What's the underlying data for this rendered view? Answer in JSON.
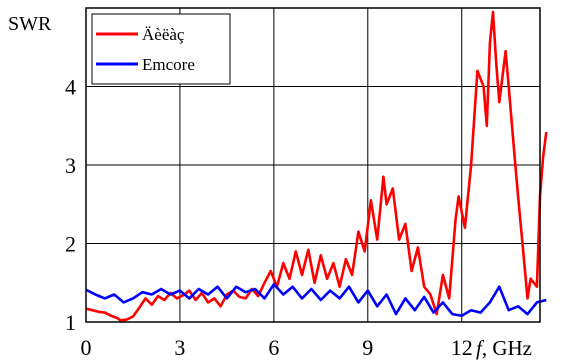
{
  "chart_data": {
    "type": "line",
    "title": "",
    "ylabel": "SWR",
    "xlabel_italic": "f",
    "xlabel_unit": ", GHz",
    "xlim": [
      0,
      14.5
    ],
    "ylim": [
      1,
      5
    ],
    "x_ticks": [
      0,
      3,
      6,
      9,
      12
    ],
    "x_tick_labels": [
      "0",
      "3",
      "6",
      "9",
      "12"
    ],
    "y_ticks": [
      1,
      2,
      3,
      4
    ],
    "y_tick_labels": [
      "1",
      "2",
      "3",
      "4"
    ],
    "grid": true,
    "legend_position": "top-left",
    "series": [
      {
        "name": "Äèëàç",
        "color": "#ff0000",
        "points": [
          [
            0,
            1.17
          ],
          [
            0.2,
            1.15
          ],
          [
            0.4,
            1.13
          ],
          [
            0.6,
            1.12
          ],
          [
            0.8,
            1.08
          ],
          [
            1.0,
            1.05
          ],
          [
            1.1,
            1.02
          ],
          [
            1.3,
            1.03
          ],
          [
            1.5,
            1.07
          ],
          [
            1.7,
            1.18
          ],
          [
            1.9,
            1.3
          ],
          [
            2.1,
            1.22
          ],
          [
            2.3,
            1.33
          ],
          [
            2.5,
            1.28
          ],
          [
            2.7,
            1.37
          ],
          [
            2.9,
            1.3
          ],
          [
            3.1,
            1.34
          ],
          [
            3.3,
            1.4
          ],
          [
            3.5,
            1.28
          ],
          [
            3.7,
            1.37
          ],
          [
            3.9,
            1.25
          ],
          [
            4.1,
            1.3
          ],
          [
            4.3,
            1.2
          ],
          [
            4.5,
            1.35
          ],
          [
            4.7,
            1.4
          ],
          [
            4.9,
            1.32
          ],
          [
            5.1,
            1.3
          ],
          [
            5.3,
            1.42
          ],
          [
            5.5,
            1.33
          ],
          [
            5.7,
            1.5
          ],
          [
            5.9,
            1.65
          ],
          [
            6.1,
            1.45
          ],
          [
            6.3,
            1.75
          ],
          [
            6.5,
            1.55
          ],
          [
            6.7,
            1.9
          ],
          [
            6.9,
            1.6
          ],
          [
            7.1,
            1.92
          ],
          [
            7.3,
            1.5
          ],
          [
            7.5,
            1.85
          ],
          [
            7.7,
            1.55
          ],
          [
            7.9,
            1.75
          ],
          [
            8.1,
            1.45
          ],
          [
            8.3,
            1.8
          ],
          [
            8.5,
            1.6
          ],
          [
            8.7,
            2.15
          ],
          [
            8.9,
            1.9
          ],
          [
            9.1,
            2.55
          ],
          [
            9.3,
            2.05
          ],
          [
            9.5,
            2.85
          ],
          [
            9.6,
            2.5
          ],
          [
            9.8,
            2.7
          ],
          [
            10.0,
            2.05
          ],
          [
            10.2,
            2.25
          ],
          [
            10.4,
            1.65
          ],
          [
            10.6,
            1.95
          ],
          [
            10.8,
            1.45
          ],
          [
            11.0,
            1.35
          ],
          [
            11.2,
            1.1
          ],
          [
            11.4,
            1.6
          ],
          [
            11.6,
            1.3
          ],
          [
            11.8,
            2.3
          ],
          [
            11.9,
            2.6
          ],
          [
            12.1,
            2.2
          ],
          [
            12.3,
            3.0
          ],
          [
            12.5,
            4.2
          ],
          [
            12.7,
            4.0
          ],
          [
            12.8,
            3.5
          ],
          [
            12.9,
            4.55
          ],
          [
            13.0,
            4.95
          ],
          [
            13.1,
            4.3
          ],
          [
            13.2,
            3.8
          ],
          [
            13.4,
            4.45
          ],
          [
            13.5,
            4.0
          ],
          [
            13.7,
            3.05
          ],
          [
            13.8,
            2.6
          ],
          [
            14.0,
            1.75
          ],
          [
            14.1,
            1.3
          ],
          [
            14.2,
            1.55
          ],
          [
            14.4,
            1.45
          ],
          [
            14.5,
            2.6
          ],
          [
            14.6,
            3.1
          ],
          [
            14.7,
            3.42
          ]
        ]
      },
      {
        "name": "Emcore",
        "color": "#0000ff",
        "points": [
          [
            0,
            1.41
          ],
          [
            0.3,
            1.35
          ],
          [
            0.6,
            1.3
          ],
          [
            0.9,
            1.35
          ],
          [
            1.2,
            1.25
          ],
          [
            1.5,
            1.3
          ],
          [
            1.8,
            1.38
          ],
          [
            2.1,
            1.35
          ],
          [
            2.4,
            1.42
          ],
          [
            2.7,
            1.35
          ],
          [
            3.0,
            1.4
          ],
          [
            3.3,
            1.3
          ],
          [
            3.6,
            1.42
          ],
          [
            3.9,
            1.35
          ],
          [
            4.2,
            1.45
          ],
          [
            4.5,
            1.3
          ],
          [
            4.8,
            1.45
          ],
          [
            5.1,
            1.38
          ],
          [
            5.4,
            1.42
          ],
          [
            5.7,
            1.3
          ],
          [
            6.0,
            1.48
          ],
          [
            6.3,
            1.35
          ],
          [
            6.6,
            1.45
          ],
          [
            6.9,
            1.3
          ],
          [
            7.2,
            1.42
          ],
          [
            7.5,
            1.28
          ],
          [
            7.8,
            1.4
          ],
          [
            8.1,
            1.3
          ],
          [
            8.4,
            1.45
          ],
          [
            8.7,
            1.25
          ],
          [
            9.0,
            1.4
          ],
          [
            9.3,
            1.2
          ],
          [
            9.6,
            1.35
          ],
          [
            9.9,
            1.1
          ],
          [
            10.2,
            1.3
          ],
          [
            10.5,
            1.15
          ],
          [
            10.8,
            1.32
          ],
          [
            11.1,
            1.12
          ],
          [
            11.4,
            1.25
          ],
          [
            11.7,
            1.1
          ],
          [
            12.0,
            1.08
          ],
          [
            12.3,
            1.15
          ],
          [
            12.6,
            1.12
          ],
          [
            12.9,
            1.25
          ],
          [
            13.2,
            1.45
          ],
          [
            13.5,
            1.15
          ],
          [
            13.8,
            1.2
          ],
          [
            14.1,
            1.1
          ],
          [
            14.4,
            1.25
          ],
          [
            14.7,
            1.28
          ]
        ]
      }
    ]
  }
}
